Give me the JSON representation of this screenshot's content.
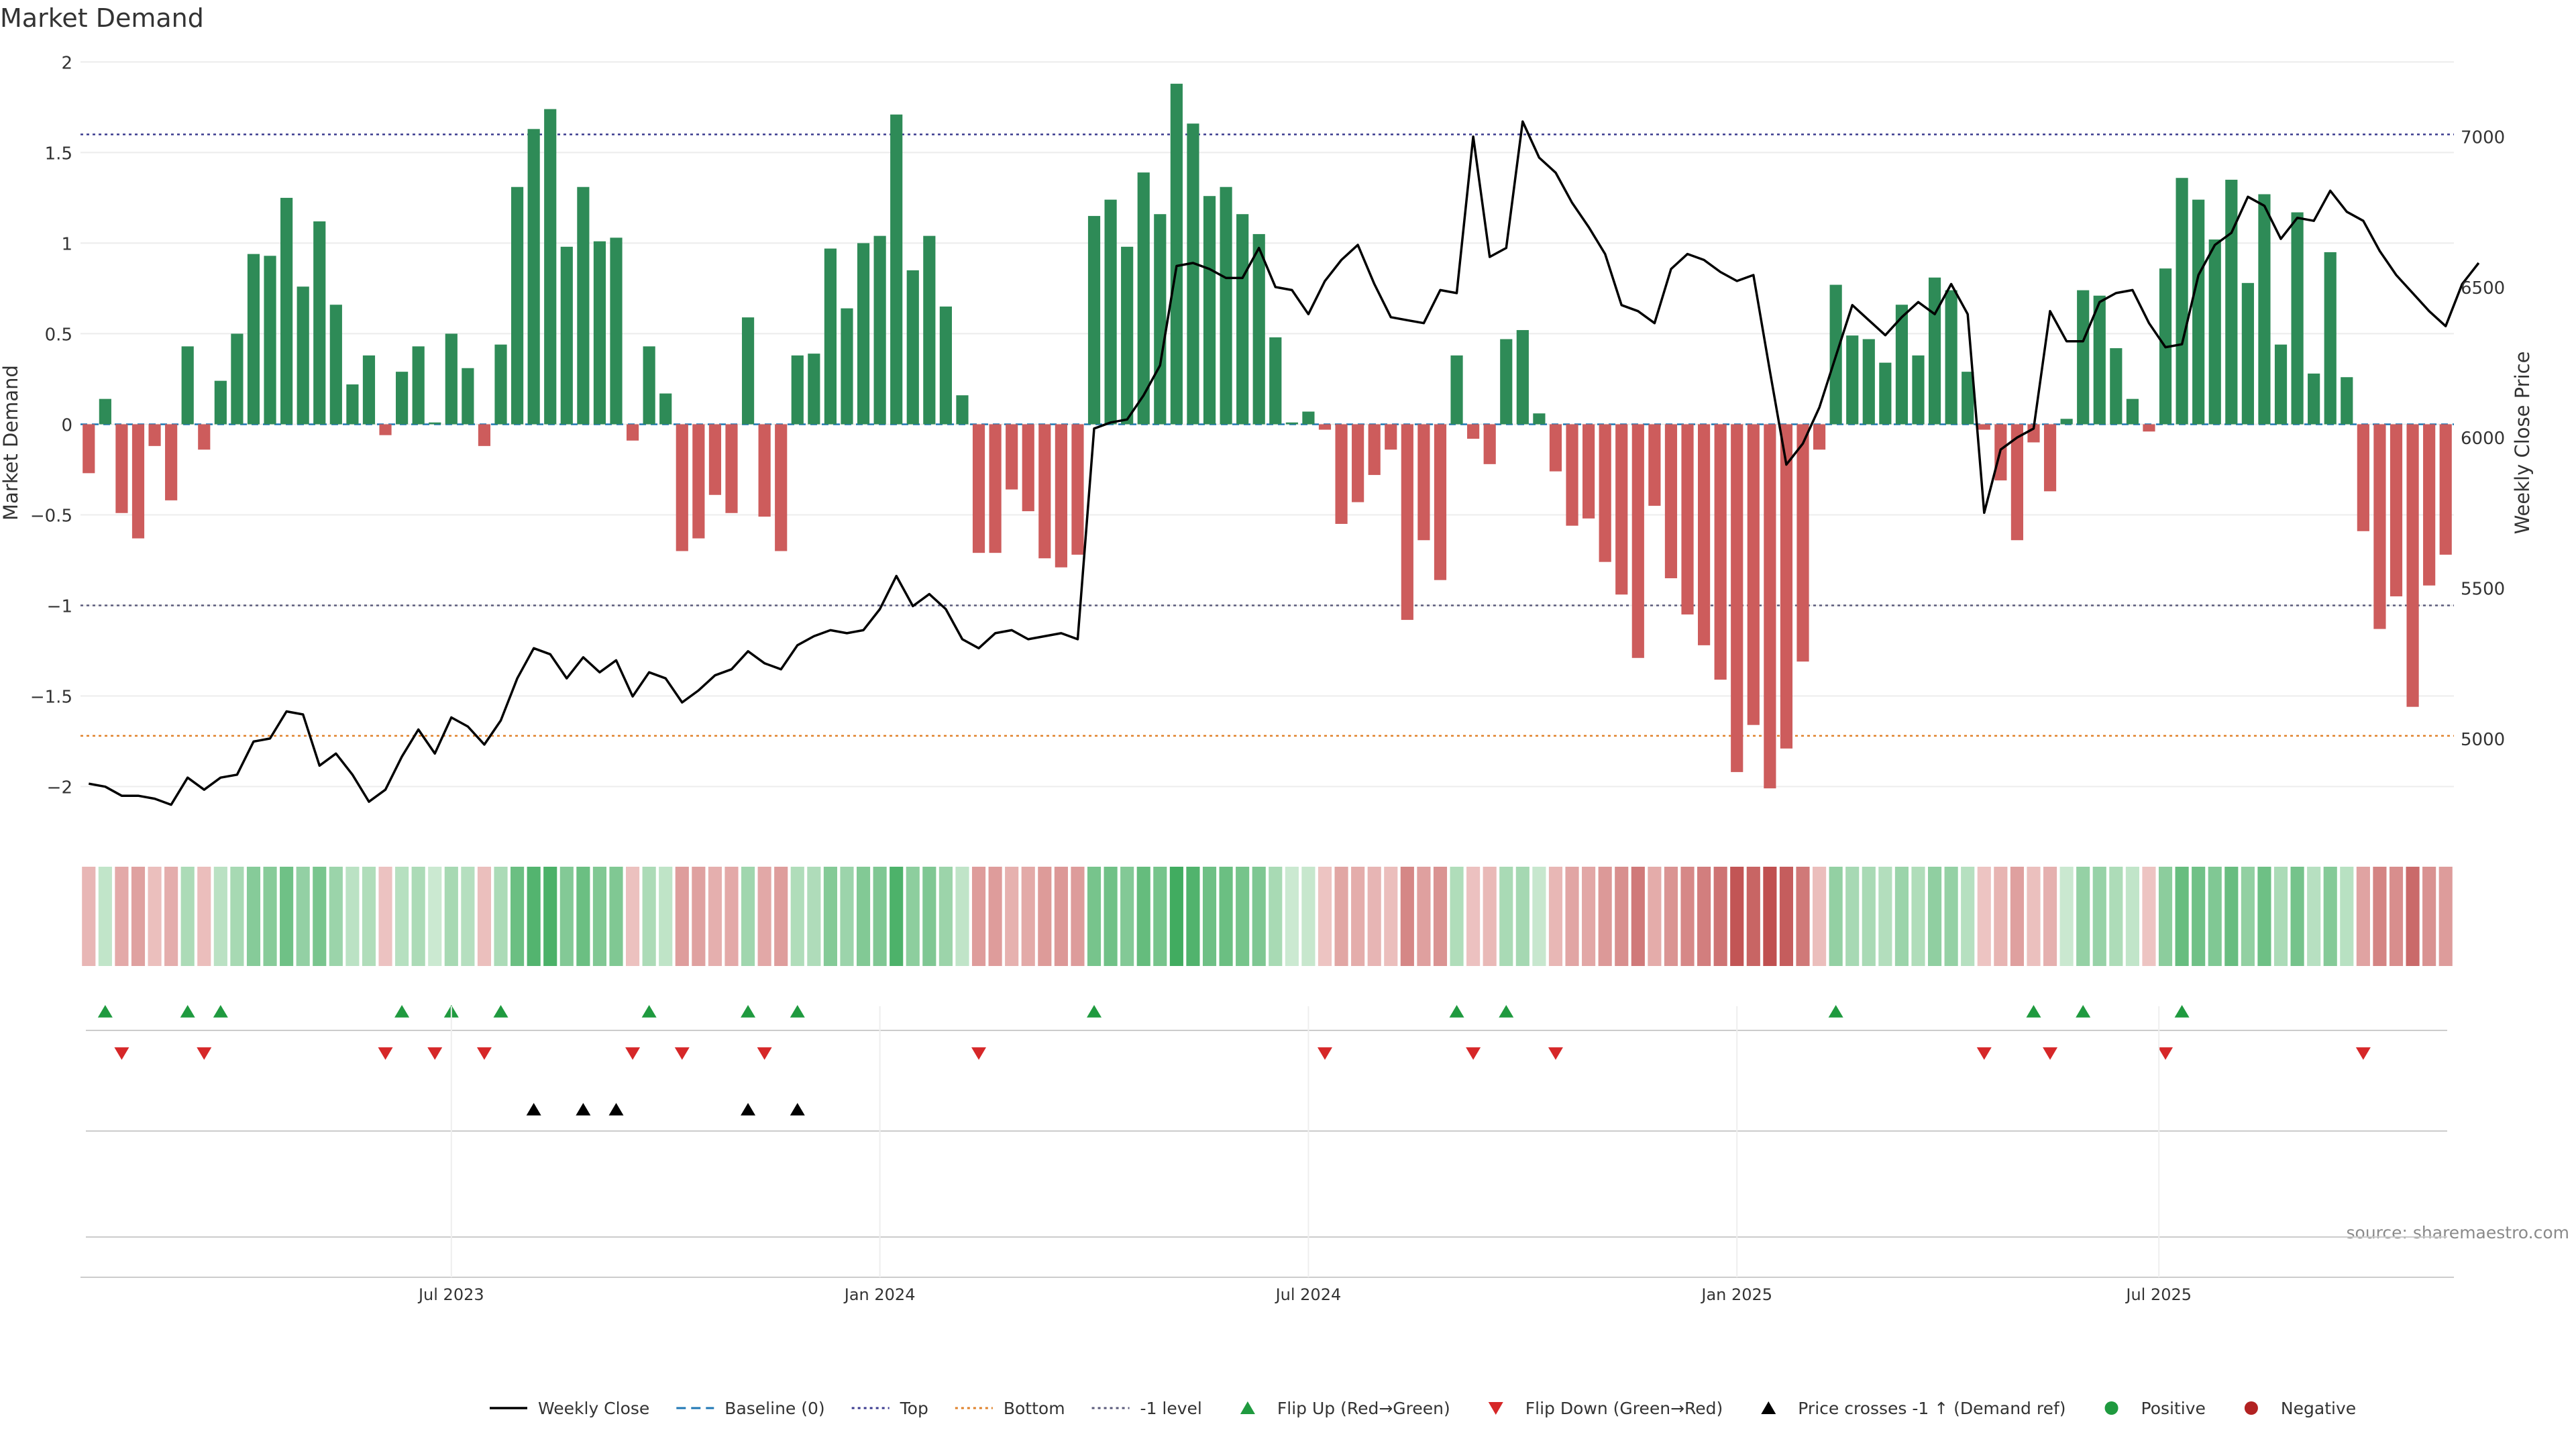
{
  "chart_data": {
    "type": "bar",
    "title": "Market Demand",
    "ylabel": "Market Demand",
    "y2label": "Weekly Close Price",
    "ylim": [
      -2.25,
      2.12
    ],
    "y2lim": [
      4690,
      7320
    ],
    "yticks": [
      2,
      1.5,
      1,
      0.5,
      0,
      -0.5,
      -1,
      -1.5,
      -2
    ],
    "ytick_labels": [
      "2",
      "1.5",
      "1",
      "0.5",
      "0",
      "−0.5",
      "−1",
      "−1.5",
      "−2"
    ],
    "y2ticks": [
      7000,
      6500,
      6000,
      5500,
      5000
    ],
    "y2tick_labels": [
      "7000",
      "6500",
      "6000",
      "5500",
      "5000"
    ],
    "x_dates": {
      "labels": [
        "Jul 2023",
        "Jan 2024",
        "Jul 2024",
        "Jan 2025",
        "Jul 2025"
      ],
      "week_index": [
        22,
        48,
        74,
        100,
        125.6
      ]
    },
    "reference_lines": {
      "top": 1.6,
      "bottom": -1.72,
      "minus_one": -1.0,
      "baseline": 0
    },
    "demand": [
      -0.27,
      0.14,
      -0.49,
      -0.63,
      -0.12,
      -0.42,
      0.43,
      -0.14,
      0.24,
      0.5,
      0.94,
      0.93,
      1.25,
      0.76,
      1.12,
      0.66,
      0.22,
      0.38,
      -0.06,
      0.29,
      0.43,
      0.01,
      0.5,
      0.31,
      -0.12,
      0.44,
      1.31,
      1.63,
      1.74,
      0.98,
      1.31,
      1.01,
      1.03,
      -0.09,
      0.43,
      0.17,
      -0.7,
      -0.63,
      -0.39,
      -0.49,
      0.59,
      -0.51,
      -0.7,
      0.38,
      0.39,
      0.97,
      0.64,
      1.0,
      1.04,
      1.71,
      0.85,
      1.04,
      0.65,
      0.16,
      -0.71,
      -0.71,
      -0.36,
      -0.48,
      -0.74,
      -0.79,
      -0.72,
      1.15,
      1.24,
      0.98,
      1.39,
      1.16,
      1.88,
      1.66,
      1.26,
      1.31,
      1.16,
      1.05,
      0.48,
      0.01,
      0.07,
      -0.03,
      -0.55,
      -0.43,
      -0.28,
      -0.14,
      -1.08,
      -0.64,
      -0.86,
      0.38,
      -0.08,
      -0.22,
      0.47,
      0.52,
      0.06,
      -0.26,
      -0.56,
      -0.52,
      -0.76,
      -0.94,
      -1.29,
      -0.45,
      -0.85,
      -1.05,
      -1.22,
      -1.41,
      -1.92,
      -1.66,
      -2.01,
      -1.79,
      -1.31,
      -0.14,
      0.77,
      0.49,
      0.47,
      0.34,
      0.66,
      0.38,
      0.81,
      0.74,
      0.29,
      -0.03,
      -0.31,
      -0.64,
      -0.1,
      -0.37,
      0.03,
      0.74,
      0.71,
      0.42,
      0.14,
      -0.04,
      0.86,
      1.36,
      1.24,
      1.02,
      1.35,
      0.78,
      1.27,
      0.44,
      1.17,
      0.28,
      0.95,
      0.26,
      -0.59,
      -1.13,
      -0.95,
      -1.56,
      -0.89,
      -0.72
    ],
    "weekly_close": [
      4850,
      4840,
      4810,
      4810,
      4800,
      4780,
      4870,
      4830,
      4870,
      4880,
      4990,
      5000,
      5090,
      5080,
      4910,
      4950,
      4880,
      4790,
      4830,
      4940,
      5030,
      4950,
      5070,
      5040,
      4980,
      5060,
      5200,
      5300,
      5280,
      5200,
      5270,
      5220,
      5260,
      5140,
      5220,
      5200,
      5120,
      5160,
      5210,
      5230,
      5290,
      5250,
      5230,
      5310,
      5340,
      5360,
      5350,
      5360,
      5430,
      5540,
      5440,
      5480,
      5430,
      5330,
      5300,
      5350,
      5360,
      5330,
      5340,
      5350,
      5330,
      6030,
      6050,
      6060,
      6140,
      6240,
      6570,
      6580,
      6560,
      6530,
      6530,
      6630,
      6500,
      6490,
      6410,
      6520,
      6590,
      6640,
      6510,
      6400,
      6390,
      6380,
      6490,
      6480,
      7000,
      6600,
      6630,
      7050,
      6930,
      6880,
      6780,
      6700,
      6610,
      6440,
      6420,
      6380,
      6560,
      6610,
      6590,
      6550,
      6520,
      6540,
      6220,
      5910,
      5980,
      6100,
      6270,
      6440,
      6390,
      6340,
      6400,
      6450,
      6410,
      6510,
      6410,
      5750,
      5960,
      6000,
      6030,
      6420,
      6320,
      6320,
      6450,
      6480,
      6490,
      6380,
      6300,
      6310,
      6540,
      6640,
      6680,
      6800,
      6770,
      6660,
      6730,
      6720,
      6820,
      6750,
      6720,
      6620,
      6540,
      6480,
      6420,
      6370,
      6510,
      6580
    ],
    "heat_strip": {
      "colors": "derived from demand: green = positive, red = negative, intensity ∝ |demand|"
    },
    "flip_up": [
      1,
      6,
      8,
      19,
      22,
      25,
      34,
      40,
      43,
      61,
      83,
      86,
      106,
      118,
      121,
      127
    ],
    "flip_down": [
      2,
      7,
      18,
      21,
      24,
      33,
      36,
      41,
      54,
      75,
      84,
      89,
      115,
      119,
      126,
      138
    ],
    "price_cross_up": [
      27,
      30,
      32,
      40,
      43
    ],
    "legend": [
      {
        "label": "Weekly Close",
        "symbol": "line",
        "color": "#000000"
      },
      {
        "label": "Baseline (0)",
        "symbol": "dash",
        "color": "#1f77b4"
      },
      {
        "label": "Top",
        "symbol": "dot",
        "color": "#3b3b8f"
      },
      {
        "label": "Bottom",
        "symbol": "dot",
        "color": "#e0822a"
      },
      {
        "label": "-1 level",
        "symbol": "dot",
        "color": "#5a5a7a"
      },
      {
        "label": "Flip Up (Red→Green)",
        "symbol": "tri-up",
        "color": "#1f9a3f"
      },
      {
        "label": "Flip Down (Green→Red)",
        "symbol": "tri-down",
        "color": "#d62728"
      },
      {
        "label": "Price crosses -1 ↑ (Demand ref)",
        "symbol": "tri-up",
        "color": "#000000"
      },
      {
        "label": "Positive",
        "symbol": "dot-circle",
        "color": "#1f9a3f"
      },
      {
        "label": "Negative",
        "symbol": "dot-circle",
        "color": "#b22222"
      }
    ],
    "source": "source: sharemaestro.com",
    "colors": {
      "positive": "#2e8b57",
      "negative": "#cd5c5c",
      "price": "#000000"
    }
  }
}
